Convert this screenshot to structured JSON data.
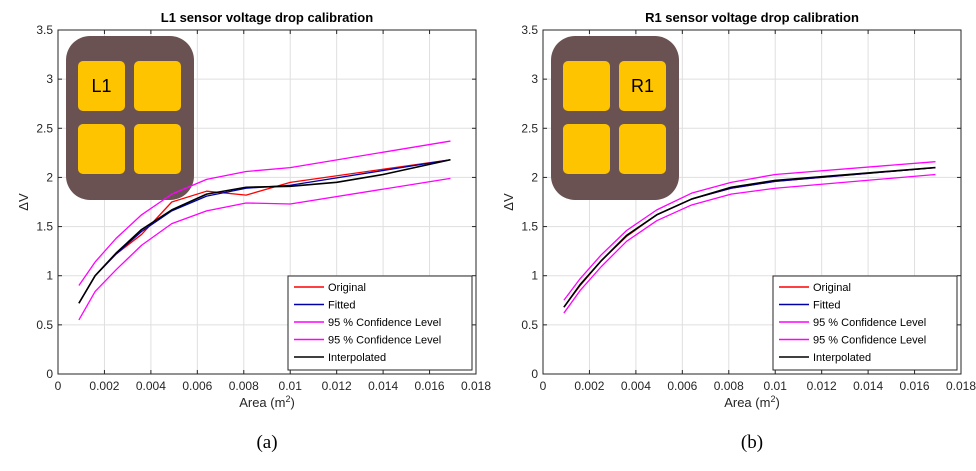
{
  "chart_data": [
    {
      "type": "line",
      "title": "L1 sensor voltage drop calibration",
      "xlabel": "Area (m",
      "xlabel_sup": "2",
      "xlabel_end": ")",
      "ylabel": "ΔV",
      "xlim": [
        0,
        0.018
      ],
      "ylim": [
        0,
        3.5
      ],
      "xticks": [
        0,
        0.002,
        0.004,
        0.006,
        0.008,
        0.01,
        0.012,
        0.014,
        0.016,
        0.018
      ],
      "xtick_labels": [
        "0",
        "0.002",
        "0.004",
        "0.006",
        "0.008",
        "0.01",
        "0.012",
        "0.014",
        "0.016",
        "0.018"
      ],
      "yticks": [
        0,
        0.5,
        1,
        1.5,
        2,
        2.5,
        3,
        3.5
      ],
      "ytick_labels": [
        "0",
        "0.5",
        "1",
        "1.5",
        "2",
        "2.5",
        "3",
        "3.5"
      ],
      "grid": true,
      "legend_position": "bottom-right",
      "sensor_label": "L1",
      "sensor_highlight": 0,
      "caption": "(a)",
      "series": [
        {
          "name": "Original",
          "color": "#ff0000",
          "x": [
            0.0009,
            0.0016,
            0.0025,
            0.0036,
            0.0049,
            0.0064,
            0.0081,
            0.01,
            0.0169
          ],
          "y": [
            0.72,
            1.0,
            1.22,
            1.42,
            1.75,
            1.86,
            1.82,
            1.95,
            2.18
          ]
        },
        {
          "name": "Fitted",
          "color": "#0000aa",
          "x": [
            0.0009,
            0.0016,
            0.0025,
            0.0036,
            0.0049,
            0.0064,
            0.0081,
            0.01,
            0.0169
          ],
          "y": [
            0.72,
            1.0,
            1.22,
            1.45,
            1.66,
            1.81,
            1.89,
            1.92,
            2.18
          ]
        },
        {
          "name": "95 % Confidence Level",
          "color": "#ff00ff",
          "x": [
            0.0009,
            0.0016,
            0.0025,
            0.0036,
            0.0049,
            0.0064,
            0.0081,
            0.01,
            0.0169
          ],
          "y": [
            0.9,
            1.14,
            1.38,
            1.62,
            1.83,
            1.98,
            2.06,
            2.1,
            2.37
          ]
        },
        {
          "name": "95 % Confidence Level",
          "color": "#ff00ff",
          "x": [
            0.0009,
            0.0016,
            0.0025,
            0.0036,
            0.0049,
            0.0064,
            0.0081,
            0.01,
            0.0169
          ],
          "y": [
            0.55,
            0.84,
            1.06,
            1.31,
            1.53,
            1.66,
            1.74,
            1.73,
            1.99
          ]
        },
        {
          "name": "Interpolated",
          "color": "#000000",
          "x": [
            0.0009,
            0.0016,
            0.0025,
            0.0036,
            0.0049,
            0.0064,
            0.0081,
            0.01,
            0.012,
            0.014,
            0.0169
          ],
          "y": [
            0.72,
            1.0,
            1.23,
            1.47,
            1.67,
            1.83,
            1.9,
            1.91,
            1.95,
            2.03,
            2.18
          ]
        }
      ]
    },
    {
      "type": "line",
      "title": "R1 sensor voltage drop calibration",
      "xlabel": "Area (m",
      "xlabel_sup": "2",
      "xlabel_end": ")",
      "ylabel": "ΔV",
      "xlim": [
        0,
        0.018
      ],
      "ylim": [
        0,
        3.5
      ],
      "xticks": [
        0,
        0.002,
        0.004,
        0.006,
        0.008,
        0.01,
        0.012,
        0.014,
        0.016,
        0.018
      ],
      "xtick_labels": [
        "0",
        "0.002",
        "0.004",
        "0.006",
        "0.008",
        "0.01",
        "0.012",
        "0.014",
        "0.016",
        "0.018"
      ],
      "yticks": [
        0,
        0.5,
        1,
        1.5,
        2,
        2.5,
        3,
        3.5
      ],
      "ytick_labels": [
        "0",
        "0.5",
        "1",
        "1.5",
        "2",
        "2.5",
        "3",
        "3.5"
      ],
      "grid": true,
      "legend_position": "bottom-right",
      "sensor_label": "R1",
      "sensor_highlight": 1,
      "caption": "(b)",
      "series": [
        {
          "name": "Original",
          "color": "#ff0000",
          "x": [
            0.0009,
            0.0016,
            0.0025,
            0.0036,
            0.0049,
            0.0064,
            0.0081,
            0.01,
            0.0169
          ],
          "y": [
            0.68,
            0.9,
            1.15,
            1.4,
            1.62,
            1.78,
            1.89,
            1.96,
            2.1
          ]
        },
        {
          "name": "Fitted",
          "color": "#0000aa",
          "x": [
            0.0009,
            0.0016,
            0.0025,
            0.0036,
            0.0049,
            0.0064,
            0.0081,
            0.01,
            0.0169
          ],
          "y": [
            0.68,
            0.91,
            1.15,
            1.41,
            1.62,
            1.78,
            1.89,
            1.96,
            2.1
          ]
        },
        {
          "name": "95 % Confidence Level",
          "color": "#ff00ff",
          "x": [
            0.0009,
            0.0016,
            0.0025,
            0.0036,
            0.0049,
            0.0064,
            0.0081,
            0.01,
            0.0169
          ],
          "y": [
            0.75,
            0.97,
            1.21,
            1.46,
            1.67,
            1.84,
            1.95,
            2.03,
            2.16
          ]
        },
        {
          "name": "95 % Confidence Level",
          "color": "#ff00ff",
          "x": [
            0.0009,
            0.0016,
            0.0025,
            0.0036,
            0.0049,
            0.0064,
            0.0081,
            0.01,
            0.0169
          ],
          "y": [
            0.62,
            0.85,
            1.09,
            1.35,
            1.56,
            1.72,
            1.83,
            1.89,
            2.03
          ]
        },
        {
          "name": "Interpolated",
          "color": "#000000",
          "x": [
            0.0009,
            0.0016,
            0.0025,
            0.0036,
            0.0049,
            0.0064,
            0.0081,
            0.01,
            0.0169
          ],
          "y": [
            0.68,
            0.91,
            1.15,
            1.41,
            1.62,
            1.78,
            1.9,
            1.97,
            2.1
          ]
        }
      ]
    }
  ]
}
